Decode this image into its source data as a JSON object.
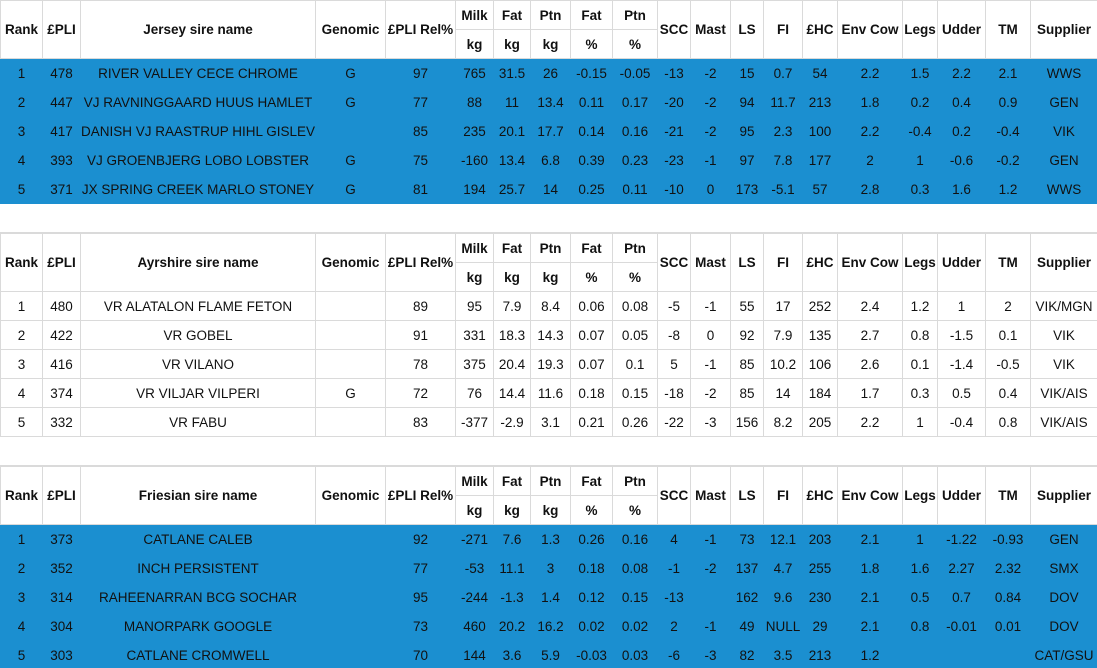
{
  "tables": [
    {
      "headers": [
        [
          "Rank"
        ],
        [
          "£PLI"
        ],
        [
          "Jersey sire name"
        ],
        [
          "Genomic"
        ],
        [
          "£PLI Rel%"
        ],
        [
          "Milk",
          "kg"
        ],
        [
          "Fat",
          "kg"
        ],
        [
          "Ptn",
          "kg"
        ],
        [
          "Fat",
          "%"
        ],
        [
          "Ptn",
          "%"
        ],
        [
          "SCC"
        ],
        [
          "Mast"
        ],
        [
          "LS"
        ],
        [
          "FI"
        ],
        [
          "£HC"
        ],
        [
          "Env Cow"
        ],
        [
          "Legs"
        ],
        [
          "Udder"
        ],
        [
          "TM"
        ],
        [
          "Supplier"
        ]
      ],
      "rows": [
        [
          "1",
          "478",
          "RIVER VALLEY CECE CHROME",
          "G",
          "97",
          "765",
          "31.5",
          "26",
          "-0.15",
          "-0.05",
          "-13",
          "-2",
          "15",
          "0.7",
          "54",
          "2.2",
          "1.5",
          "2.2",
          "2.1",
          "WWS"
        ],
        [
          "2",
          "447",
          "VJ RAVNINGGAARD HUUS HAMLET",
          "G",
          "77",
          "88",
          "11",
          "13.4",
          "0.11",
          "0.17",
          "-20",
          "-2",
          "94",
          "11.7",
          "213",
          "1.8",
          "0.2",
          "0.4",
          "0.9",
          "GEN"
        ],
        [
          "3",
          "417",
          "DANISH VJ RAASTRUP HIHL GISLEV",
          null,
          "85",
          "235",
          "20.1",
          "17.7",
          "0.14",
          "0.16",
          "-21",
          "-2",
          "95",
          "2.3",
          "100",
          "2.2",
          "-0.4",
          "0.2",
          "-0.4",
          "VIK"
        ],
        [
          "4",
          "393",
          "VJ GROENBJERG LOBO LOBSTER",
          "G",
          "75",
          "-160",
          "13.4",
          "6.8",
          "0.39",
          "0.23",
          "-23",
          "-1",
          "97",
          "7.8",
          "177",
          "2",
          "1",
          "-0.6",
          "-0.2",
          "GEN"
        ],
        [
          "5",
          "371",
          "JX SPRING CREEK MARLO STONEY",
          "G",
          "81",
          "194",
          "25.7",
          "14",
          "0.25",
          "0.11",
          "-10",
          "0",
          "173",
          "-5.1",
          "57",
          "2.8",
          "0.3",
          "1.6",
          "1.2",
          "WWS"
        ]
      ]
    },
    {
      "headers": [
        [
          "Rank"
        ],
        [
          "£PLI"
        ],
        [
          "Ayrshire sire name"
        ],
        [
          "Genomic"
        ],
        [
          "£PLI Rel%"
        ],
        [
          "Milk",
          "kg"
        ],
        [
          "Fat",
          "kg"
        ],
        [
          "Ptn",
          "kg"
        ],
        [
          "Fat",
          "%"
        ],
        [
          "Ptn",
          "%"
        ],
        [
          "SCC"
        ],
        [
          "Mast"
        ],
        [
          "LS"
        ],
        [
          "FI"
        ],
        [
          "£HC"
        ],
        [
          "Env Cow"
        ],
        [
          "Legs"
        ],
        [
          "Udder"
        ],
        [
          "TM"
        ],
        [
          "Supplier"
        ]
      ],
      "rows": [
        [
          "1",
          "480",
          "VR ALATALON FLAME FETON",
          null,
          "89",
          "95",
          "7.9",
          "8.4",
          "0.06",
          "0.08",
          "-5",
          "-1",
          "55",
          "17",
          "252",
          "2.4",
          "1.2",
          "1",
          "2",
          "VIK/MGN"
        ],
        [
          "2",
          "422",
          "VR GOBEL",
          null,
          "91",
          "331",
          "18.3",
          "14.3",
          "0.07",
          "0.05",
          "-8",
          "0",
          "92",
          "7.9",
          "135",
          "2.7",
          "0.8",
          "-1.5",
          "0.1",
          "VIK"
        ],
        [
          "3",
          "416",
          "VR VILANO",
          null,
          "78",
          "375",
          "20.4",
          "19.3",
          "0.07",
          "0.1",
          "5",
          "-1",
          "85",
          "10.2",
          "106",
          "2.6",
          "0.1",
          "-1.4",
          "-0.5",
          "VIK"
        ],
        [
          "4",
          "374",
          "VR VILJAR VILPERI",
          "G",
          "72",
          "76",
          "14.4",
          "11.6",
          "0.18",
          "0.15",
          "-18",
          "-2",
          "85",
          "14",
          "184",
          "1.7",
          "0.3",
          "0.5",
          "0.4",
          "VIK/AIS"
        ],
        [
          "5",
          "332",
          "VR FABU",
          null,
          "83",
          "-377",
          "-2.9",
          "3.1",
          "0.21",
          "0.26",
          "-22",
          "-3",
          "156",
          "8.2",
          "205",
          "2.2",
          "1",
          "-0.4",
          "0.8",
          "VIK/AIS"
        ]
      ]
    },
    {
      "headers": [
        [
          "Rank"
        ],
        [
          "£PLI"
        ],
        [
          "Friesian sire name"
        ],
        [
          "Genomic"
        ],
        [
          "£PLI Rel%"
        ],
        [
          "Milk",
          "kg"
        ],
        [
          "Fat",
          "kg"
        ],
        [
          "Ptn",
          "kg"
        ],
        [
          "Fat",
          "%"
        ],
        [
          "Ptn",
          "%"
        ],
        [
          "SCC"
        ],
        [
          "Mast"
        ],
        [
          "LS"
        ],
        [
          "FI"
        ],
        [
          "£HC"
        ],
        [
          "Env Cow"
        ],
        [
          "Legs"
        ],
        [
          "Udder"
        ],
        [
          "TM"
        ],
        [
          "Supplier"
        ]
      ],
      "rows": [
        [
          "1",
          "373",
          "CATLANE CALEB",
          null,
          "92",
          "-271",
          "7.6",
          "1.3",
          "0.26",
          "0.16",
          "4",
          "-1",
          "73",
          "12.1",
          "203",
          "2.1",
          "1",
          "-1.22",
          "-0.93",
          "GEN"
        ],
        [
          "2",
          "352",
          "INCH PERSISTENT",
          null,
          "77",
          "-53",
          "11.1",
          "3",
          "0.18",
          "0.08",
          "-1",
          "-2",
          "137",
          "4.7",
          "255",
          "1.8",
          "1.6",
          "2.27",
          "2.32",
          "SMX"
        ],
        [
          "3",
          "314",
          "RAHEENARRAN BCG SOCHAR",
          null,
          "95",
          "-244",
          "-1.3",
          "1.4",
          "0.12",
          "0.15",
          "-13",
          null,
          "162",
          "9.6",
          "230",
          "2.1",
          "0.5",
          "0.7",
          "0.84",
          "DOV"
        ],
        [
          "4",
          "304",
          "MANORPARK GOOGLE",
          null,
          "73",
          "460",
          "20.2",
          "16.2",
          "0.02",
          "0.02",
          "2",
          "-1",
          "49",
          "NULL",
          "29",
          "2.1",
          "0.8",
          "-0.01",
          "0.01",
          "DOV"
        ],
        [
          "5",
          "303",
          "CATLANE CROMWELL",
          null,
          "70",
          "144",
          "3.6",
          "5.9",
          "-0.03",
          "0.03",
          "-6",
          "-3",
          "82",
          "3.5",
          "213",
          "1.2",
          null,
          null,
          null,
          "CAT/GSU"
        ]
      ]
    }
  ]
}
